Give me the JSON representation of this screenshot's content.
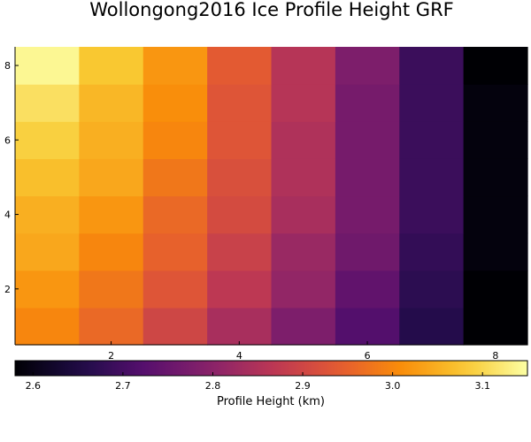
{
  "chart_data": {
    "type": "heatmap",
    "title": "Wollongong2016 Ice Profile Height GRF",
    "colorbar_label": "Profile Height (km)",
    "colormap": "inferno",
    "x": [
      1,
      2,
      3,
      4,
      5,
      6,
      7,
      8
    ],
    "y": [
      1,
      2,
      3,
      4,
      5,
      6,
      7,
      8
    ],
    "x_ticks": [
      2,
      4,
      6,
      8
    ],
    "y_ticks": [
      2,
      4,
      6,
      8
    ],
    "xlim": [
      0.5,
      8.5
    ],
    "ylim": [
      0.5,
      8.5
    ],
    "clim": [
      2.58,
      3.15
    ],
    "colorbar_ticks": [
      2.6,
      2.7,
      2.8,
      2.9,
      3.0,
      3.1
    ],
    "values": [
      [
        3.0,
        2.96,
        2.9,
        2.84,
        2.78,
        2.72,
        2.66,
        2.58
      ],
      [
        3.02,
        2.98,
        2.93,
        2.87,
        2.81,
        2.74,
        2.67,
        2.58
      ],
      [
        3.04,
        3.0,
        2.95,
        2.89,
        2.82,
        2.76,
        2.68,
        2.59
      ],
      [
        3.05,
        3.02,
        2.96,
        2.91,
        2.84,
        2.77,
        2.69,
        2.59
      ],
      [
        3.07,
        3.04,
        2.98,
        2.92,
        2.85,
        2.77,
        2.69,
        2.59
      ],
      [
        3.09,
        3.05,
        3.0,
        2.93,
        2.85,
        2.77,
        2.69,
        2.59
      ],
      [
        3.11,
        3.06,
        3.01,
        2.93,
        2.86,
        2.77,
        2.69,
        2.59
      ],
      [
        3.14,
        3.08,
        3.02,
        2.94,
        2.86,
        2.78,
        2.69,
        2.58
      ]
    ],
    "grid": false
  }
}
